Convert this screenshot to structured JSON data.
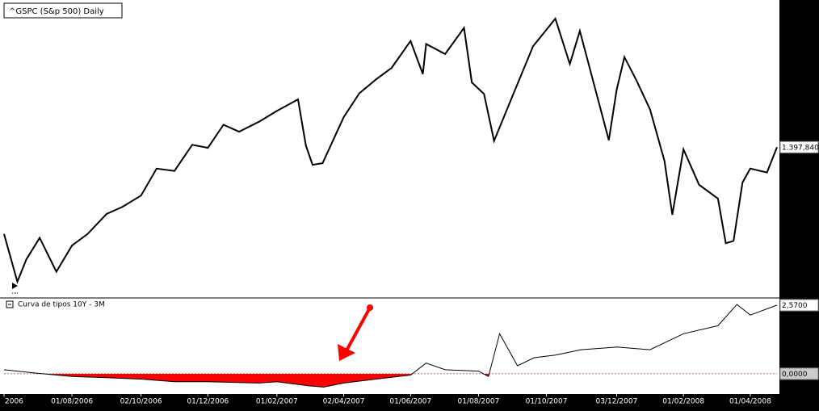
{
  "chart_data": [
    {
      "type": "line",
      "title": "^GSPC (S&p 500) Daily",
      "color": "#000000",
      "x": [
        "01/06/2006",
        "13/06/2006",
        "21/06/2006",
        "03/07/2006",
        "18/07/2006",
        "01/08/2006",
        "15/08/2006",
        "01/09/2006",
        "15/09/2006",
        "02/10/2006",
        "16/10/2006",
        "01/11/2006",
        "17/11/2006",
        "01/12/2006",
        "15/12/2006",
        "29/12/2006",
        "16/01/2007",
        "01/02/2007",
        "20/02/2007",
        "27/02/2007",
        "05/03/2007",
        "14/03/2007",
        "02/04/2007",
        "16/04/2007",
        "01/05/2007",
        "15/05/2007",
        "01/06/2007",
        "12/06/2007",
        "15/06/2007",
        "02/07/2007",
        "19/07/2007",
        "26/07/2007",
        "06/08/2007",
        "15/08/2007",
        "03/09/2007",
        "19/09/2007",
        "09/10/2007",
        "22/10/2007",
        "31/10/2007",
        "26/11/2007",
        "03/12/2007",
        "10/12/2007",
        "21/12/2007",
        "02/01/2008",
        "15/01/2008",
        "22/01/2008",
        "01/02/2008",
        "15/02/2008",
        "03/03/2008",
        "10/03/2008",
        "17/03/2008",
        "25/03/2008",
        "01/04/2008",
        "16/04/2008",
        "25/04/2008"
      ],
      "values": [
        1285,
        1223,
        1252,
        1280,
        1236,
        1270,
        1285,
        1311,
        1320,
        1335,
        1370,
        1367,
        1401,
        1397,
        1427,
        1418,
        1431,
        1445,
        1460,
        1400,
        1375,
        1377,
        1437,
        1468,
        1486,
        1501,
        1536,
        1493,
        1532,
        1519,
        1553,
        1482,
        1467,
        1406,
        1473,
        1529,
        1565,
        1506,
        1549,
        1407,
        1472,
        1515,
        1484,
        1447,
        1380,
        1310,
        1395,
        1349,
        1331,
        1273,
        1276,
        1352,
        1370,
        1365,
        1397.84
      ],
      "xlim": [
        "01/06/2006",
        "25/04/2008"
      ],
      "ylim": [
        1205,
        1585
      ],
      "yticks": [
        {
          "value": 1397.84,
          "label": "1.397,8400"
        }
      ]
    },
    {
      "type": "line",
      "title": "Curva de tipos 10Y - 3M",
      "color": "#000000",
      "negative_fill": "#ff0000",
      "zero_line": true,
      "x": [
        "01/06/2006",
        "01/07/2006",
        "01/08/2006",
        "01/09/2006",
        "02/10/2006",
        "01/11/2006",
        "01/12/2006",
        "16/01/2007",
        "01/02/2007",
        "01/03/2007",
        "15/03/2007",
        "02/04/2007",
        "01/05/2007",
        "01/06/2007",
        "15/06/2007",
        "02/07/2007",
        "01/08/2007",
        "10/08/2007",
        "20/08/2007",
        "05/09/2007",
        "20/09/2007",
        "09/10/2007",
        "01/11/2007",
        "03/12/2007",
        "02/01/2008",
        "01/02/2008",
        "03/03/2008",
        "20/03/2008",
        "01/04/2008",
        "25/04/2008"
      ],
      "values": [
        0.15,
        0.02,
        -0.1,
        -0.15,
        -0.2,
        -0.3,
        -0.3,
        -0.35,
        -0.3,
        -0.45,
        -0.5,
        -0.35,
        -0.2,
        -0.05,
        0.4,
        0.15,
        0.1,
        -0.1,
        1.5,
        0.3,
        0.6,
        0.7,
        0.9,
        1.0,
        0.9,
        1.5,
        1.8,
        2.6,
        2.2,
        2.57
      ],
      "xlim": [
        "01/06/2006",
        "25/04/2008"
      ],
      "ylim": [
        -0.7,
        2.75
      ],
      "yticks": [
        {
          "value": 0,
          "label": "0,0000"
        },
        {
          "value": 2.57,
          "label": "2,5700"
        }
      ],
      "xticks": [
        {
          "value": "01/06/2006",
          "label": "2006"
        },
        "01/08/2006",
        "02/10/2006",
        "01/12/2006",
        "01/02/2007",
        "02/04/2007",
        "01/06/2007",
        "01/08/2007",
        "01/10/2007",
        "03/12/2007",
        "01/02/2008",
        "01/04/2008"
      ]
    }
  ]
}
